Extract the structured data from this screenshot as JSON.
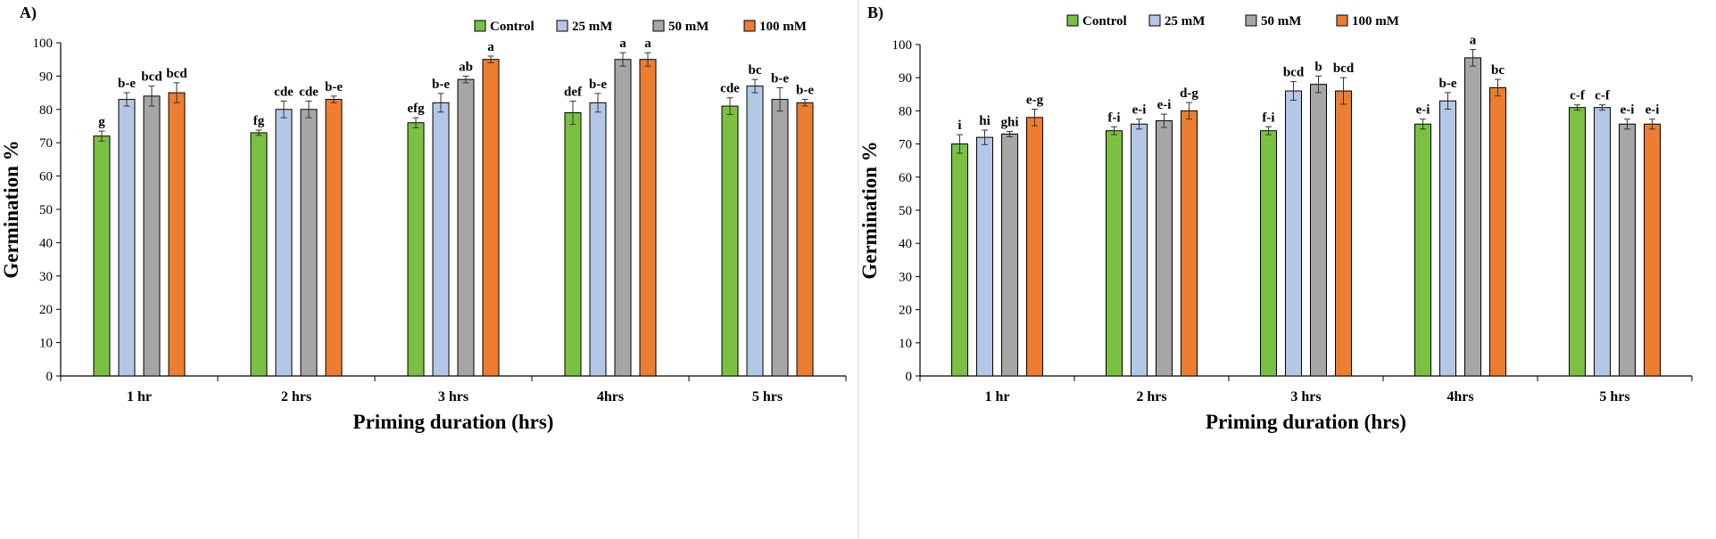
{
  "colors": {
    "Control": "#7ac142",
    "25 mM": "#b4c7e7",
    "50 mM": "#a6a6a6",
    "100 mM": "#ed7d31"
  },
  "chart_data": [
    {
      "panel_label": "A)",
      "type": "bar",
      "xlabel": "Priming duration (hrs)",
      "ylabel": "Germination %",
      "ylim": [
        0,
        100
      ],
      "yticks": [
        0,
        10,
        20,
        30,
        40,
        50,
        60,
        70,
        80,
        90,
        100
      ],
      "legend_position": "top-right",
      "categories": [
        "1 hr",
        "2 hrs",
        "3 hrs",
        "4hrs",
        "5 hrs"
      ],
      "series": [
        {
          "name": "Control",
          "values": [
            72,
            73,
            76,
            79,
            81
          ],
          "errors": [
            1.5,
            0.8,
            1.5,
            3.5,
            2.5
          ],
          "labels": [
            "g",
            "fg",
            "efg",
            "def",
            "cde"
          ]
        },
        {
          "name": "25 mM",
          "values": [
            83,
            80,
            82,
            82,
            87
          ],
          "errors": [
            2,
            2.5,
            2.8,
            2.8,
            2
          ],
          "labels": [
            "b-e",
            "cde",
            "b-e",
            "b-e",
            "bc"
          ]
        },
        {
          "name": "50 mM",
          "values": [
            84,
            80,
            89,
            95,
            83
          ],
          "errors": [
            3,
            2.5,
            1,
            2,
            3.5
          ],
          "labels": [
            "bcd",
            "cde",
            "ab",
            "a",
            "b-e"
          ]
        },
        {
          "name": "100 mM",
          "values": [
            85,
            83,
            95,
            95,
            82
          ],
          "errors": [
            3,
            1,
            1,
            2,
            1
          ],
          "labels": [
            "bcd",
            "b-e",
            "a",
            "a",
            "b-e"
          ]
        }
      ]
    },
    {
      "panel_label": "B)",
      "type": "bar",
      "xlabel": "Priming duration (hrs)",
      "ylabel": "Germination %",
      "ylim": [
        0,
        100
      ],
      "yticks": [
        0,
        10,
        20,
        30,
        40,
        50,
        60,
        70,
        80,
        90,
        100
      ],
      "legend_position": "top-right",
      "categories": [
        "1 hr",
        "2 hrs",
        "3 hrs",
        "4hrs",
        "5 hrs"
      ],
      "series": [
        {
          "name": "Control",
          "values": [
            70,
            74,
            74,
            76,
            81
          ],
          "errors": [
            2.8,
            1.2,
            1.2,
            1.5,
            0.8
          ],
          "labels": [
            "i",
            "f-i",
            "f-i",
            "e-i",
            "c-f"
          ]
        },
        {
          "name": "25 mM",
          "values": [
            72,
            76,
            86,
            83,
            81
          ],
          "errors": [
            2.2,
            1.5,
            2.8,
            2.5,
            0.8
          ],
          "labels": [
            "hi",
            "e-i",
            "bcd",
            "b-e",
            "c-f"
          ]
        },
        {
          "name": "50 mM",
          "values": [
            73,
            77,
            88,
            96,
            76
          ],
          "errors": [
            0.8,
            2,
            2.5,
            2.5,
            1.5
          ],
          "labels": [
            "ghi",
            "e-i",
            "b",
            "a",
            "e-i"
          ]
        },
        {
          "name": "100 mM",
          "values": [
            78,
            80,
            86,
            87,
            76
          ],
          "errors": [
            2.5,
            2.5,
            4,
            2.5,
            1.5
          ],
          "labels": [
            "e-g",
            "d-g",
            "bcd",
            "bc",
            "e-i"
          ]
        }
      ]
    }
  ]
}
